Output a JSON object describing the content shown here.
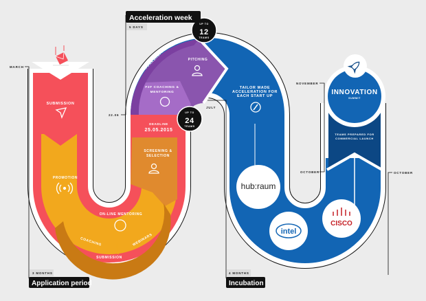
{
  "colors": {
    "red": "#f5505a",
    "orange": "#f2a81d",
    "dark_orange": "#e08a2e",
    "brown": "#c97a14",
    "purple": "#7b3fa0",
    "light_purple": "#a56cc7",
    "mid_purple": "#8a55ae",
    "blue": "#1265b4",
    "navy": "#0c4784",
    "background": "#ececec"
  },
  "phases": {
    "application": {
      "title": "Application period",
      "duration": "3 MONTHS",
      "start": "MARCH"
    },
    "acceleration": {
      "title": "Acceleration week",
      "duration": "5 DAYS",
      "start": "22.06"
    },
    "incubation": {
      "title": "Incubation",
      "duration": "4 MONTHS",
      "start": "JULY"
    }
  },
  "steps": {
    "submission": "SUBMISSION",
    "promotion": "PROMOTION",
    "online_mentoring": "ON-LINE MENTORING",
    "coaching": "COACHING",
    "webinars": "WEBINARS",
    "submission_band": "SUBMISSION",
    "screening": [
      "SCREENING &",
      "SELECTION"
    ],
    "deadline_label": "DEADLINE",
    "deadline_date": "25.05.2015",
    "workshops": "WORKSHOPS",
    "f2f": [
      "F2F COACHING &",
      "MENTORING"
    ],
    "pitching": "PITCHING",
    "tailor": [
      "TAILOR MADE",
      "ACCELERATION FOR",
      "EACH START UP"
    ],
    "innovation": "INNOVATION",
    "summit": "SUMMIT",
    "prepared": [
      "TEAMS PREPARED FOR",
      "COMMERCIAL LAUNCH"
    ]
  },
  "badges": [
    {
      "top": "UP TO",
      "number": "12",
      "bottom": "TEAMS"
    },
    {
      "top": "UP TO",
      "number": "24",
      "bottom": "TEAMS"
    }
  ],
  "timeline": {
    "november": "NOVEMBER",
    "october_left": "OCTOBER",
    "october_right": "OCTOBER"
  },
  "partners": {
    "hubraum": "hub:raum",
    "intel": "intel",
    "cisco": "CISCO"
  },
  "icons": [
    "envelope-icon",
    "paper-plane-icon",
    "broadcast-icon",
    "globe-icon",
    "person-icon",
    "compass-icon",
    "rocket-icon"
  ]
}
